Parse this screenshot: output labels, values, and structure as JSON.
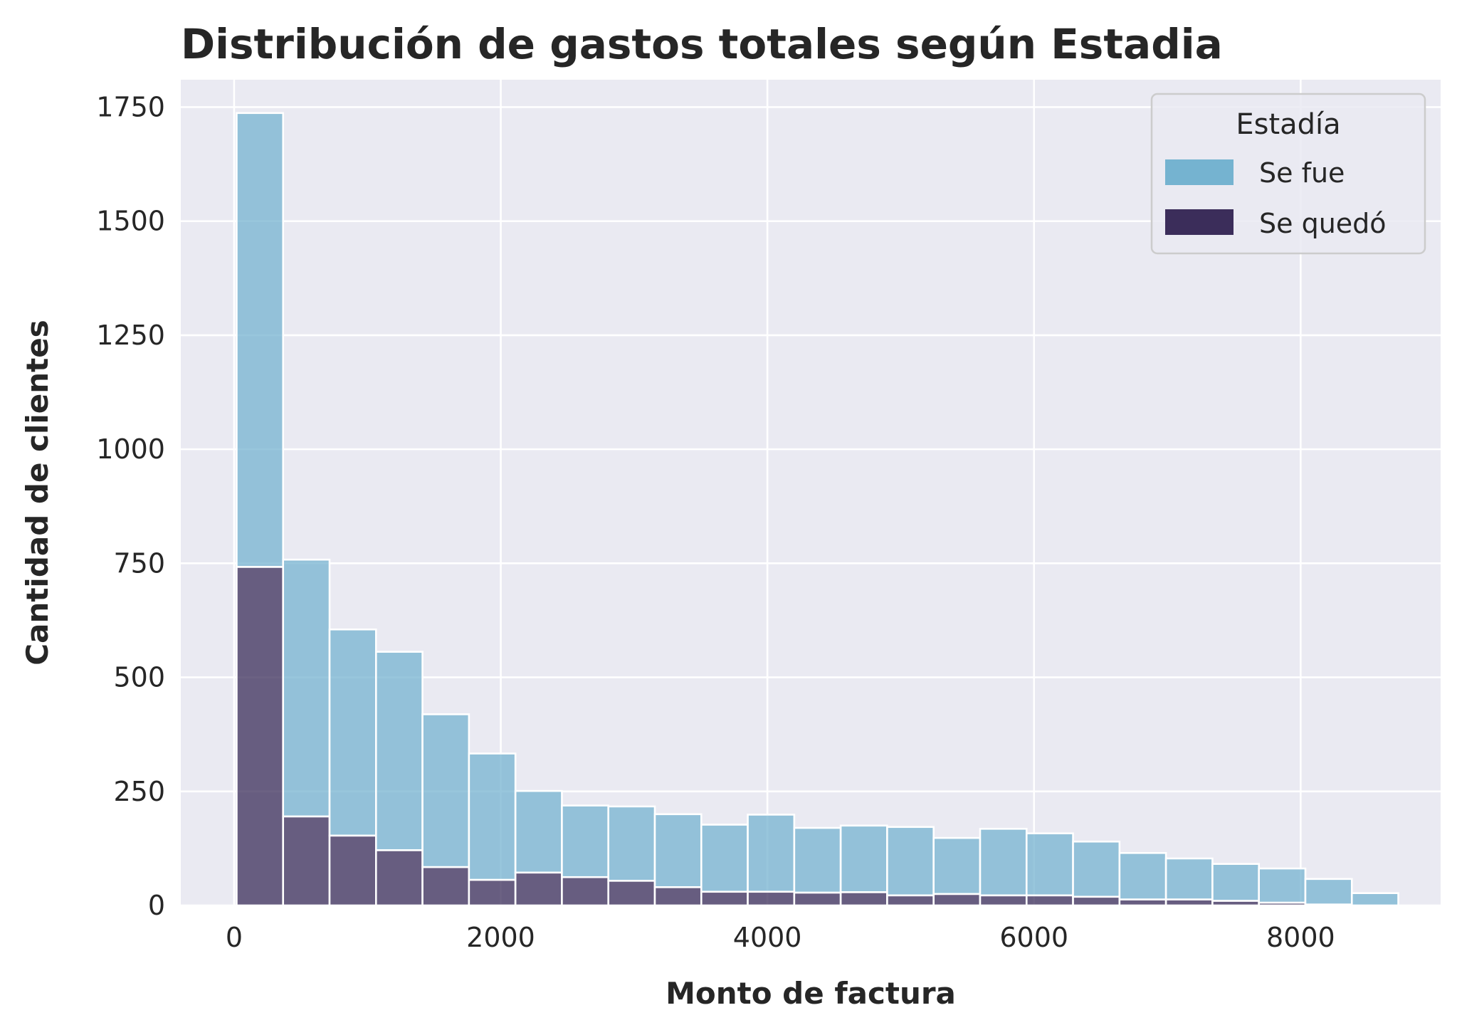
{
  "chart_data": {
    "type": "bar",
    "title": "Distribución de gastos totales según Estadia",
    "xlabel": "Monto de factura",
    "ylabel": "Cantidad de clientes",
    "xlim": [
      -400,
      9050
    ],
    "ylim": [
      0,
      1810
    ],
    "xticks": [
      0,
      2000,
      4000,
      6000,
      8000
    ],
    "yticks": [
      0,
      250,
      500,
      750,
      1000,
      1250,
      1500,
      1750
    ],
    "grid": true,
    "stacked": true,
    "bin_edges": [
      18.8,
      367.35,
      715.9,
      1064.45,
      1413.0,
      1761.55,
      2110.1,
      2458.65,
      2807.2,
      3155.75,
      3504.3,
      3852.85,
      4201.4,
      4549.95,
      4898.5,
      5247.05,
      5595.6,
      5944.15,
      6292.7,
      6641.25,
      6989.8,
      7338.35,
      7686.9,
      8035.45,
      8384.0,
      8732.55
    ],
    "legend": {
      "title": "Estadía",
      "position": "top-right"
    },
    "series": [
      {
        "name": "Se quedó",
        "color": "#3b2d5a",
        "values": [
          742,
          195,
          153,
          121,
          84,
          56,
          72,
          62,
          54,
          40,
          30,
          30,
          28,
          29,
          22,
          25,
          22,
          22,
          19,
          13,
          13,
          10,
          6,
          2,
          0
        ]
      },
      {
        "name": "Se fue",
        "color": "#75b3d0",
        "values": [
          995,
          563,
          452,
          435,
          335,
          277,
          179,
          157,
          163,
          160,
          147,
          169,
          142,
          146,
          150,
          123,
          146,
          136,
          121,
          102,
          90,
          81,
          75,
          56,
          27
        ]
      }
    ]
  }
}
